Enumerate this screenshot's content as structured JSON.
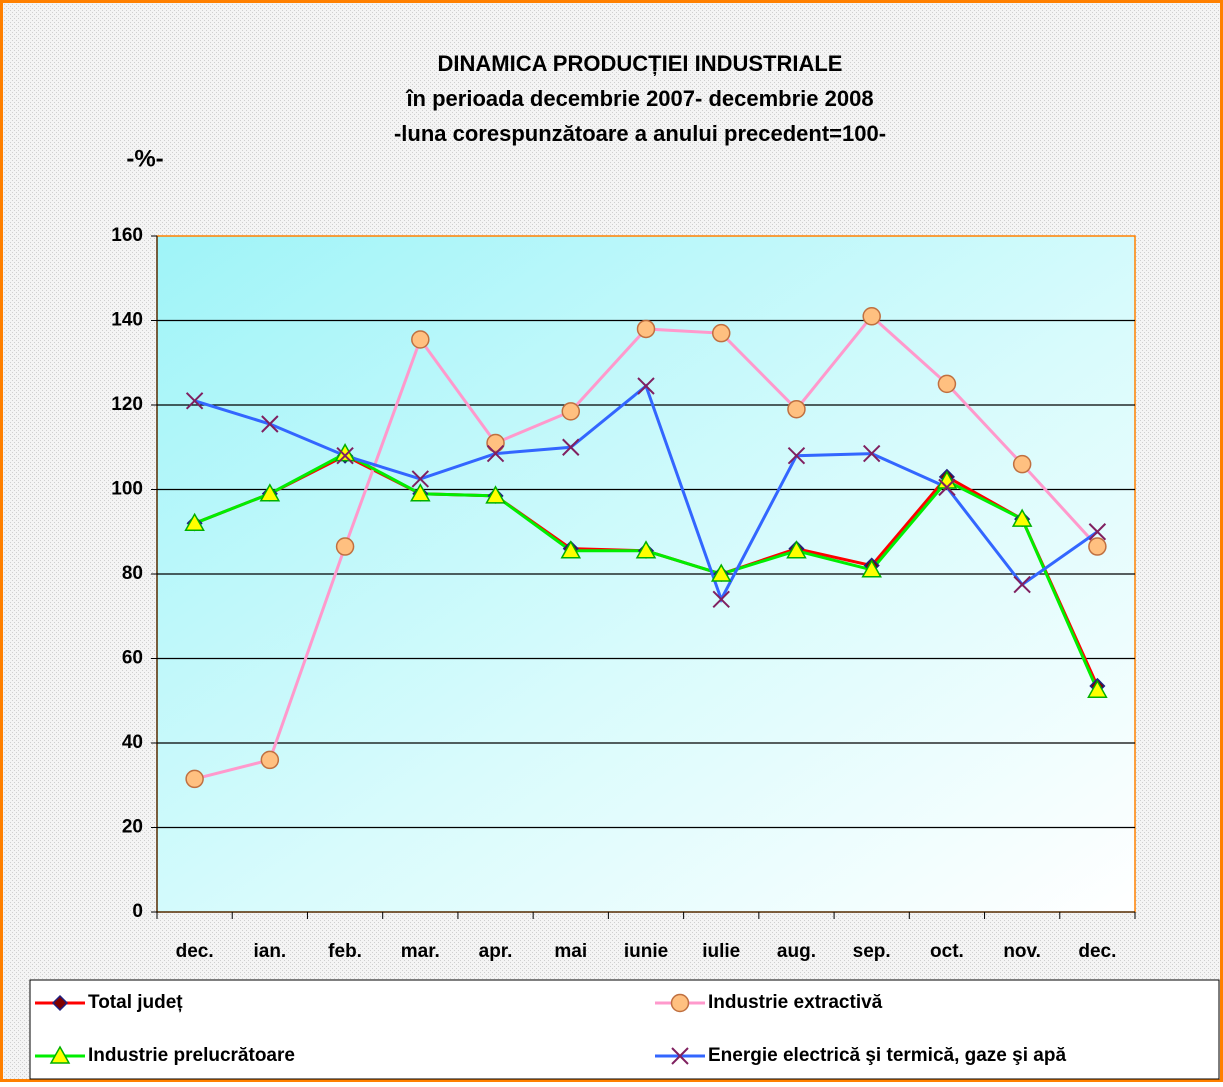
{
  "chart_data": {
    "type": "line",
    "title": "DINAMICA PRODUCȚIEI INDUSTRIALE",
    "subtitle": [
      "în perioada decembrie 2007- decembrie 2008",
      "-luna corespunzătoare a anului precedent=100-"
    ],
    "y_label": "-%-",
    "categories": [
      "dec.",
      "ian.",
      "feb.",
      "mar.",
      "apr.",
      "mai",
      "iunie",
      "iulie",
      "aug.",
      "sep.",
      "oct.",
      "nov.",
      "dec."
    ],
    "series": [
      {
        "name": "Total județ",
        "color": "#ff0000",
        "marker": "diamond",
        "values": [
          92,
          99,
          108,
          99,
          98.5,
          86,
          85.5,
          80,
          86,
          82,
          103,
          93,
          53.5
        ]
      },
      {
        "name": "Industrie extractivă",
        "color": "#ff99cc",
        "marker": "circle",
        "values": [
          31.5,
          36,
          86.5,
          135.5,
          111,
          118.5,
          138,
          137,
          119,
          141,
          125,
          106,
          86.5
        ]
      },
      {
        "name": "Industrie prelucrătoare",
        "color": "#00ee00",
        "marker": "triangle",
        "values": [
          92,
          99,
          108.5,
          99,
          98.5,
          85.5,
          85.5,
          80,
          85.5,
          81,
          102,
          93,
          52.5
        ]
      },
      {
        "name": "Energie electrică şi termică, gaze şi apă",
        "color": "#3366ff",
        "marker": "x",
        "values": [
          121,
          115.5,
          108,
          102.5,
          108.5,
          110,
          124.5,
          74,
          108,
          108.5,
          100.5,
          77.5,
          90
        ]
      }
    ],
    "ylim": [
      0,
      160
    ],
    "yticks": [
      0,
      20,
      40,
      60,
      80,
      100,
      120,
      140,
      160
    ],
    "grid": true,
    "legend": "bottom"
  }
}
